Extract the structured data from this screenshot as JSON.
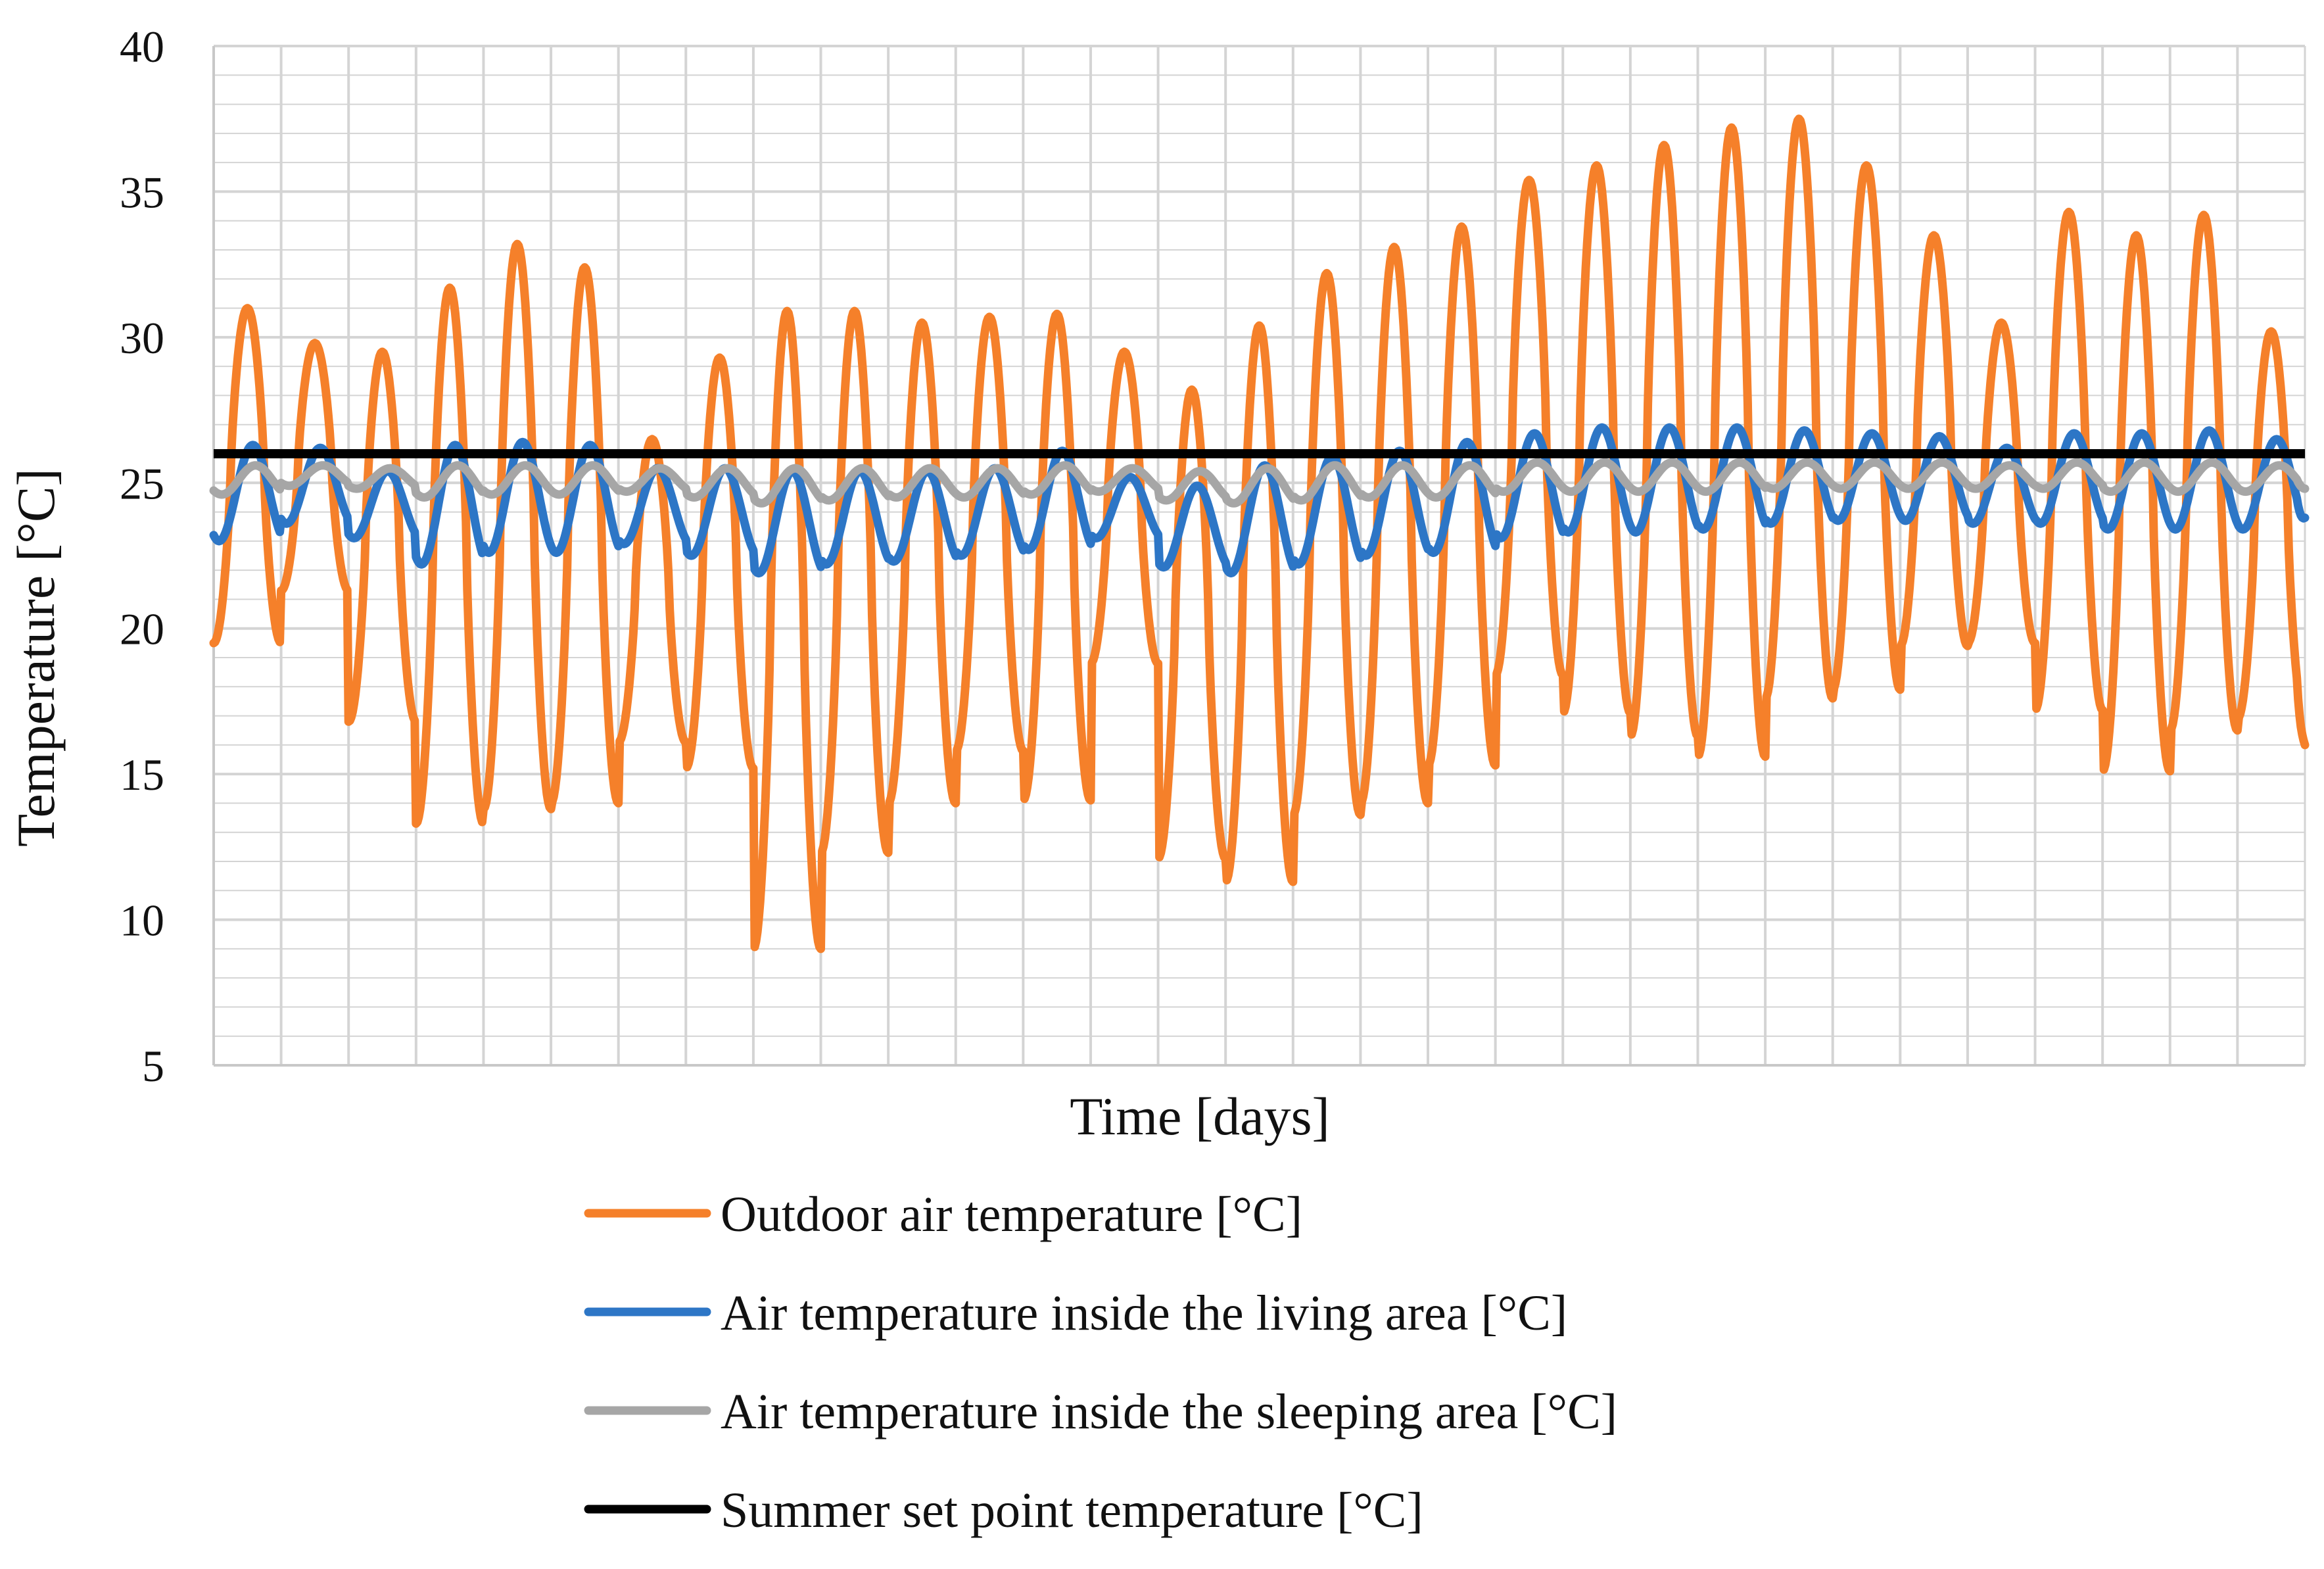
{
  "chart_data": {
    "type": "line",
    "title": "",
    "xlabel": "Time [days]",
    "ylabel": "Temperature [°C]",
    "ylim": [
      5,
      40
    ],
    "yticks": [
      "40",
      "35",
      "30",
      "25",
      "20",
      "15",
      "10",
      "5"
    ],
    "xlim": [
      0,
      31
    ],
    "grid": true,
    "legend_position": "bottom",
    "colors": {
      "outdoor": "#f5802a",
      "living": "#2d76c6",
      "sleeping": "#a6a6a6",
      "setpoint": "#000000",
      "grid": "#d4d4d4"
    },
    "series": [
      {
        "name": "Outdoor air temperature [°C]",
        "key": "outdoor",
        "daily_max": [
          31.0,
          29.8,
          29.5,
          31.7,
          33.2,
          32.4,
          26.5,
          29.3,
          30.9,
          30.9,
          30.5,
          30.7,
          30.8,
          29.5,
          28.2,
          30.4,
          32.2,
          33.1,
          33.8,
          35.4,
          35.9,
          36.6,
          37.2,
          37.5,
          35.9,
          33.5,
          30.5,
          34.3,
          33.5,
          34.2,
          30.2
        ],
        "daily_min": [
          19.5,
          21.3,
          16.8,
          13.3,
          13.8,
          14.0,
          16.1,
          15.2,
          9.0,
          12.3,
          14.0,
          15.8,
          14.1,
          18.8,
          12.1,
          11.3,
          13.6,
          14.0,
          15.3,
          18.4,
          17.1,
          16.3,
          15.6,
          17.6,
          17.9,
          19.4,
          19.5,
          17.2,
          15.1,
          16.5,
          16.9
        ],
        "end_value": 16.0
      },
      {
        "name": "Air temperature inside the living area [°C]",
        "key": "living",
        "daily_max": [
          26.3,
          26.2,
          25.4,
          26.3,
          26.4,
          26.3,
          25.5,
          25.5,
          25.4,
          25.4,
          25.4,
          25.5,
          26.1,
          25.2,
          24.9,
          25.6,
          25.9,
          26.1,
          26.4,
          26.7,
          26.9,
          26.9,
          26.9,
          26.8,
          26.7,
          26.6,
          26.2,
          26.7,
          26.7,
          26.8,
          26.5
        ],
        "daily_min": [
          23.0,
          23.6,
          23.1,
          22.2,
          22.6,
          22.6,
          22.9,
          22.5,
          21.9,
          22.2,
          22.3,
          22.5,
          22.7,
          23.1,
          22.1,
          21.9,
          22.2,
          22.5,
          22.6,
          23.1,
          23.3,
          23.3,
          23.4,
          23.6,
          23.7,
          23.7,
          23.6,
          23.6,
          23.4,
          23.4,
          23.4
        ],
        "end_value": 23.8
      },
      {
        "name": "Air temperature inside the sleeping area [°C]",
        "key": "sleeping",
        "daily_max": [
          25.6,
          25.6,
          25.5,
          25.6,
          25.6,
          25.6,
          25.5,
          25.5,
          25.5,
          25.5,
          25.5,
          25.5,
          25.6,
          25.5,
          25.4,
          25.5,
          25.6,
          25.6,
          25.6,
          25.7,
          25.7,
          25.7,
          25.7,
          25.7,
          25.7,
          25.7,
          25.6,
          25.7,
          25.7,
          25.7,
          25.6
        ],
        "daily_min": [
          24.6,
          24.9,
          24.8,
          24.5,
          24.6,
          24.6,
          24.7,
          24.5,
          24.3,
          24.4,
          24.5,
          24.5,
          24.6,
          24.7,
          24.4,
          24.3,
          24.4,
          24.5,
          24.5,
          24.7,
          24.7,
          24.7,
          24.7,
          24.8,
          24.8,
          24.8,
          24.8,
          24.8,
          24.7,
          24.7,
          24.7
        ],
        "end_value": 24.8
      },
      {
        "name": "Summer set point temperature [°C]",
        "key": "setpoint",
        "constant": 26.0
      }
    ]
  }
}
